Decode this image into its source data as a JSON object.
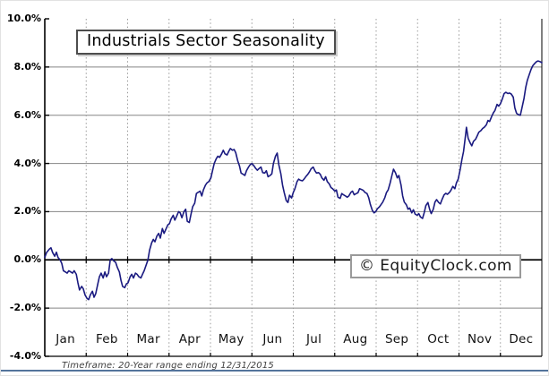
{
  "chart_data": {
    "type": "line",
    "title": "Industrials Sector Seasonality",
    "watermark": "© EquityClock.com",
    "footnote": "Timeframe: 20-Year range ending 12/31/2015",
    "x_axis": {
      "months": [
        "Jan",
        "Feb",
        "Mar",
        "Apr",
        "May",
        "Jun",
        "Jul",
        "Aug",
        "Sep",
        "Oct",
        "Nov",
        "Dec"
      ],
      "gridline_style": "dotted month boundaries"
    },
    "y_axis": {
      "min": -4,
      "max": 10,
      "tick_step": 2,
      "unit": "%",
      "ticks": [
        {
          "label": "10.0%",
          "value": 10
        },
        {
          "label": "8.0%",
          "value": 8
        },
        {
          "label": "6.0%",
          "value": 6
        },
        {
          "label": "4.0%",
          "value": 4
        },
        {
          "label": "2.0%",
          "value": 2
        },
        {
          "label": "0.0%",
          "value": 0
        },
        {
          "label": "-2.0%",
          "value": -2
        },
        {
          "label": "-4.0%",
          "value": -4
        }
      ],
      "zero_line_emphasis": true
    },
    "grid": {
      "horizontal": "solid gray",
      "vertical": "dotted gray",
      "legend": "none"
    },
    "colors": {
      "line": "#1a1a80",
      "grid": "#858585",
      "dotted_grid": "#9a9a9a",
      "axis": "#000000",
      "bottom_rule": "#54749b"
    },
    "series": [
      {
        "name": "seasonality",
        "x_unit": "month (0 = Jan 1, 12 = Dec 31)",
        "y_unit": "cumulative % change, 20-year average",
        "points": [
          [
            0.0,
            0.1
          ],
          [
            0.04,
            0.3
          ],
          [
            0.11,
            0.45
          ],
          [
            0.15,
            0.5
          ],
          [
            0.19,
            0.3
          ],
          [
            0.24,
            0.15
          ],
          [
            0.28,
            0.32
          ],
          [
            0.32,
            0.1
          ],
          [
            0.37,
            0.0
          ],
          [
            0.41,
            -0.15
          ],
          [
            0.45,
            -0.45
          ],
          [
            0.5,
            -0.5
          ],
          [
            0.54,
            -0.55
          ],
          [
            0.58,
            -0.45
          ],
          [
            0.63,
            -0.5
          ],
          [
            0.67,
            -0.55
          ],
          [
            0.71,
            -0.45
          ],
          [
            0.76,
            -0.6
          ],
          [
            0.8,
            -0.95
          ],
          [
            0.84,
            -1.25
          ],
          [
            0.89,
            -1.1
          ],
          [
            0.93,
            -1.2
          ],
          [
            0.97,
            -1.45
          ],
          [
            1.02,
            -1.6
          ],
          [
            1.06,
            -1.65
          ],
          [
            1.1,
            -1.45
          ],
          [
            1.15,
            -1.3
          ],
          [
            1.19,
            -1.55
          ],
          [
            1.23,
            -1.4
          ],
          [
            1.28,
            -1.0
          ],
          [
            1.32,
            -0.7
          ],
          [
            1.36,
            -0.55
          ],
          [
            1.41,
            -0.75
          ],
          [
            1.45,
            -0.5
          ],
          [
            1.49,
            -0.7
          ],
          [
            1.54,
            -0.55
          ],
          [
            1.58,
            0.0
          ],
          [
            1.62,
            0.05
          ],
          [
            1.67,
            -0.05
          ],
          [
            1.71,
            -0.1
          ],
          [
            1.75,
            -0.3
          ],
          [
            1.8,
            -0.5
          ],
          [
            1.84,
            -0.85
          ],
          [
            1.88,
            -1.1
          ],
          [
            1.93,
            -1.15
          ],
          [
            1.97,
            -1.0
          ],
          [
            2.01,
            -0.95
          ],
          [
            2.06,
            -0.7
          ],
          [
            2.1,
            -0.6
          ],
          [
            2.14,
            -0.75
          ],
          [
            2.19,
            -0.55
          ],
          [
            2.23,
            -0.6
          ],
          [
            2.27,
            -0.7
          ],
          [
            2.32,
            -0.75
          ],
          [
            2.36,
            -0.6
          ],
          [
            2.4,
            -0.45
          ],
          [
            2.45,
            -0.2
          ],
          [
            2.49,
            0.0
          ],
          [
            2.53,
            0.4
          ],
          [
            2.58,
            0.7
          ],
          [
            2.62,
            0.85
          ],
          [
            2.66,
            0.75
          ],
          [
            2.71,
            1.0
          ],
          [
            2.75,
            1.1
          ],
          [
            2.79,
            0.9
          ],
          [
            2.84,
            1.3
          ],
          [
            2.88,
            1.1
          ],
          [
            2.92,
            1.25
          ],
          [
            2.97,
            1.45
          ],
          [
            3.01,
            1.5
          ],
          [
            3.05,
            1.7
          ],
          [
            3.1,
            1.85
          ],
          [
            3.14,
            1.65
          ],
          [
            3.18,
            1.8
          ],
          [
            3.23,
            2.0
          ],
          [
            3.27,
            1.95
          ],
          [
            3.31,
            1.75
          ],
          [
            3.36,
            2.0
          ],
          [
            3.4,
            2.1
          ],
          [
            3.44,
            1.6
          ],
          [
            3.49,
            1.55
          ],
          [
            3.53,
            1.9
          ],
          [
            3.57,
            2.2
          ],
          [
            3.62,
            2.35
          ],
          [
            3.66,
            2.75
          ],
          [
            3.7,
            2.8
          ],
          [
            3.75,
            2.85
          ],
          [
            3.79,
            2.65
          ],
          [
            3.83,
            2.9
          ],
          [
            3.88,
            3.1
          ],
          [
            3.92,
            3.2
          ],
          [
            3.96,
            3.25
          ],
          [
            4.01,
            3.4
          ],
          [
            4.05,
            3.7
          ],
          [
            4.09,
            4.0
          ],
          [
            4.14,
            4.2
          ],
          [
            4.18,
            4.3
          ],
          [
            4.22,
            4.25
          ],
          [
            4.27,
            4.4
          ],
          [
            4.31,
            4.55
          ],
          [
            4.35,
            4.4
          ],
          [
            4.4,
            4.35
          ],
          [
            4.44,
            4.5
          ],
          [
            4.48,
            4.62
          ],
          [
            4.53,
            4.55
          ],
          [
            4.57,
            4.58
          ],
          [
            4.61,
            4.45
          ],
          [
            4.66,
            4.1
          ],
          [
            4.7,
            3.9
          ],
          [
            4.74,
            3.6
          ],
          [
            4.79,
            3.55
          ],
          [
            4.83,
            3.5
          ],
          [
            4.87,
            3.7
          ],
          [
            4.92,
            3.85
          ],
          [
            4.96,
            3.95
          ],
          [
            5.0,
            4.0
          ],
          [
            5.05,
            3.9
          ],
          [
            5.09,
            3.8
          ],
          [
            5.13,
            3.72
          ],
          [
            5.18,
            3.8
          ],
          [
            5.22,
            3.85
          ],
          [
            5.26,
            3.62
          ],
          [
            5.31,
            3.6
          ],
          [
            5.35,
            3.7
          ],
          [
            5.39,
            3.45
          ],
          [
            5.44,
            3.5
          ],
          [
            5.48,
            3.57
          ],
          [
            5.52,
            4.0
          ],
          [
            5.57,
            4.3
          ],
          [
            5.61,
            4.43
          ],
          [
            5.65,
            3.95
          ],
          [
            5.7,
            3.57
          ],
          [
            5.74,
            3.1
          ],
          [
            5.78,
            2.8
          ],
          [
            5.83,
            2.46
          ],
          [
            5.87,
            2.38
          ],
          [
            5.91,
            2.68
          ],
          [
            5.96,
            2.57
          ],
          [
            6.0,
            2.8
          ],
          [
            6.04,
            2.95
          ],
          [
            6.09,
            3.25
          ],
          [
            6.13,
            3.35
          ],
          [
            6.17,
            3.3
          ],
          [
            6.22,
            3.28
          ],
          [
            6.26,
            3.35
          ],
          [
            6.3,
            3.45
          ],
          [
            6.35,
            3.55
          ],
          [
            6.39,
            3.65
          ],
          [
            6.43,
            3.78
          ],
          [
            6.48,
            3.85
          ],
          [
            6.52,
            3.7
          ],
          [
            6.56,
            3.6
          ],
          [
            6.61,
            3.62
          ],
          [
            6.65,
            3.55
          ],
          [
            6.69,
            3.4
          ],
          [
            6.74,
            3.3
          ],
          [
            6.78,
            3.45
          ],
          [
            6.82,
            3.25
          ],
          [
            6.87,
            3.15
          ],
          [
            6.91,
            3.0
          ],
          [
            6.95,
            2.95
          ],
          [
            7.0,
            2.85
          ],
          [
            7.04,
            2.9
          ],
          [
            7.08,
            2.6
          ],
          [
            7.13,
            2.55
          ],
          [
            7.17,
            2.75
          ],
          [
            7.21,
            2.7
          ],
          [
            7.26,
            2.65
          ],
          [
            7.3,
            2.6
          ],
          [
            7.34,
            2.65
          ],
          [
            7.39,
            2.8
          ],
          [
            7.43,
            2.85
          ],
          [
            7.47,
            2.7
          ],
          [
            7.52,
            2.75
          ],
          [
            7.56,
            2.78
          ],
          [
            7.6,
            2.95
          ],
          [
            7.65,
            2.92
          ],
          [
            7.69,
            2.88
          ],
          [
            7.73,
            2.8
          ],
          [
            7.78,
            2.75
          ],
          [
            7.82,
            2.58
          ],
          [
            7.86,
            2.3
          ],
          [
            7.91,
            2.05
          ],
          [
            7.95,
            1.95
          ],
          [
            7.99,
            2.0
          ],
          [
            8.03,
            2.12
          ],
          [
            8.08,
            2.2
          ],
          [
            8.12,
            2.3
          ],
          [
            8.16,
            2.4
          ],
          [
            8.21,
            2.58
          ],
          [
            8.25,
            2.8
          ],
          [
            8.29,
            2.9
          ],
          [
            8.34,
            3.2
          ],
          [
            8.38,
            3.5
          ],
          [
            8.42,
            3.76
          ],
          [
            8.47,
            3.6
          ],
          [
            8.51,
            3.4
          ],
          [
            8.55,
            3.5
          ],
          [
            8.6,
            3.1
          ],
          [
            8.64,
            2.65
          ],
          [
            8.68,
            2.4
          ],
          [
            8.73,
            2.28
          ],
          [
            8.77,
            2.1
          ],
          [
            8.81,
            2.15
          ],
          [
            8.86,
            1.95
          ],
          [
            8.9,
            2.08
          ],
          [
            8.94,
            1.9
          ],
          [
            8.99,
            1.85
          ],
          [
            9.03,
            1.92
          ],
          [
            9.07,
            1.78
          ],
          [
            9.12,
            1.72
          ],
          [
            9.16,
            1.95
          ],
          [
            9.2,
            2.25
          ],
          [
            9.25,
            2.38
          ],
          [
            9.29,
            2.1
          ],
          [
            9.33,
            1.92
          ],
          [
            9.38,
            2.1
          ],
          [
            9.42,
            2.4
          ],
          [
            9.46,
            2.5
          ],
          [
            9.51,
            2.38
          ],
          [
            9.55,
            2.32
          ],
          [
            9.59,
            2.5
          ],
          [
            9.64,
            2.7
          ],
          [
            9.68,
            2.76
          ],
          [
            9.72,
            2.72
          ],
          [
            9.77,
            2.8
          ],
          [
            9.81,
            2.9
          ],
          [
            9.85,
            3.05
          ],
          [
            9.9,
            2.95
          ],
          [
            9.94,
            3.2
          ],
          [
            9.98,
            3.35
          ],
          [
            10.03,
            3.76
          ],
          [
            10.07,
            4.15
          ],
          [
            10.11,
            4.5
          ],
          [
            10.16,
            5.2
          ],
          [
            10.18,
            5.5
          ],
          [
            10.22,
            5.05
          ],
          [
            10.27,
            4.85
          ],
          [
            10.31,
            4.73
          ],
          [
            10.35,
            4.92
          ],
          [
            10.4,
            5.0
          ],
          [
            10.44,
            5.15
          ],
          [
            10.48,
            5.3
          ],
          [
            10.53,
            5.36
          ],
          [
            10.57,
            5.45
          ],
          [
            10.61,
            5.5
          ],
          [
            10.66,
            5.6
          ],
          [
            10.7,
            5.78
          ],
          [
            10.74,
            5.74
          ],
          [
            10.79,
            5.95
          ],
          [
            10.83,
            6.1
          ],
          [
            10.87,
            6.2
          ],
          [
            10.92,
            6.45
          ],
          [
            10.96,
            6.38
          ],
          [
            11.0,
            6.48
          ],
          [
            11.05,
            6.7
          ],
          [
            11.09,
            6.9
          ],
          [
            11.13,
            6.95
          ],
          [
            11.18,
            6.9
          ],
          [
            11.22,
            6.92
          ],
          [
            11.26,
            6.88
          ],
          [
            11.31,
            6.75
          ],
          [
            11.35,
            6.3
          ],
          [
            11.39,
            6.08
          ],
          [
            11.44,
            6.02
          ],
          [
            11.48,
            6.0
          ],
          [
            11.52,
            6.3
          ],
          [
            11.57,
            6.7
          ],
          [
            11.61,
            7.15
          ],
          [
            11.65,
            7.45
          ],
          [
            11.7,
            7.7
          ],
          [
            11.74,
            7.9
          ],
          [
            11.78,
            8.05
          ],
          [
            11.83,
            8.15
          ],
          [
            11.87,
            8.22
          ],
          [
            11.91,
            8.25
          ],
          [
            11.96,
            8.22
          ],
          [
            12.0,
            8.18
          ]
        ]
      }
    ]
  }
}
